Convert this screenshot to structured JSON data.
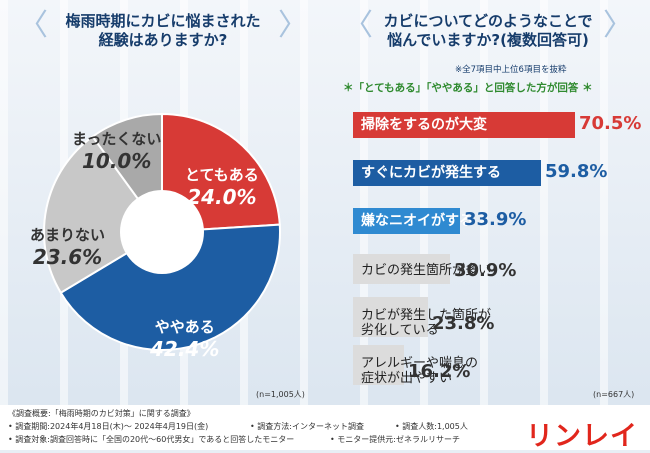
{
  "left_question": {
    "line1": "梅雨時期にカビに悩まされた",
    "line2": "経験はありますか?",
    "n_note": "(n=1,005人)"
  },
  "right_question": {
    "line1": "カビについてどのようなことで",
    "line2": "悩んでいますか?(複数回答可)",
    "note": "※全7項目中上位6項目を抜粋",
    "subtitle": "＊「とてもある」「ややある」と回答した方が回答 ＊",
    "n_note": "(n=667人)"
  },
  "colors": {
    "red": "#d73a36",
    "blue": "#1d5da3",
    "sky": "#2f8ad1",
    "gray": "#a9a9a9",
    "lightgray": "#c8c8c8",
    "panel": "#dcdcdc"
  },
  "chart_data": [
    {
      "type": "pie",
      "title": "梅雨時期にカビに悩まされた経験はありますか?",
      "slices": [
        {
          "label": "とてもある",
          "value": 24.0,
          "display": "24.0%",
          "color": "#d73a36"
        },
        {
          "label": "ややある",
          "value": 42.4,
          "display": "42.4%",
          "color": "#1d5da3"
        },
        {
          "label": "あまりない",
          "value": 23.6,
          "display": "23.6%",
          "color": "#c8c8c8"
        },
        {
          "label": "まったくない",
          "value": 10.0,
          "display": "10.0%",
          "color": "#a9a9a9"
        }
      ]
    },
    {
      "type": "bar",
      "title": "カビについてどのようなことで悩んでいますか?(複数回答可)",
      "categories": [
        "掃除をするのが大変",
        "すぐにカビが発生する",
        "嫌なニオイがする",
        "カビの発生箇所が多い",
        "カビが発生した箇所が劣化している",
        "アレルギーや喘息の症状が出やすい"
      ],
      "values": [
        70.5,
        59.8,
        33.9,
        30.9,
        23.8,
        16.2
      ],
      "displays": [
        "70.5%",
        "59.8%",
        "33.9%",
        "30.9%",
        "23.8%",
        "16.2%"
      ],
      "label_lines": [
        [
          "掃除をするのが大変"
        ],
        [
          "すぐにカビが発生する"
        ],
        [
          "嫌なニオイがする"
        ],
        [
          "カビの発生箇所が多い"
        ],
        [
          "カビが発生した箇所が",
          "劣化している"
        ],
        [
          "アレルギーや喘息の",
          "症状が出やすい"
        ]
      ],
      "xlim": [
        0,
        80
      ]
    }
  ],
  "footer": {
    "line1": "《調査概要:「梅雨時期のカビ対策」に関する調査》",
    "line2a": "• 調査期間:2024年4月18日(木)～ 2024年4月19日(金)",
    "line2b": "• 調査方法:インターネット調査",
    "line2c": "• 調査人数:1,005人",
    "line3a": "• 調査対象:調査回答時に「全国の20代〜60代男女」であると回答したモニター",
    "line3b": "• モニター提供元:ゼネラルリサーチ",
    "logo": "リンレイ"
  }
}
